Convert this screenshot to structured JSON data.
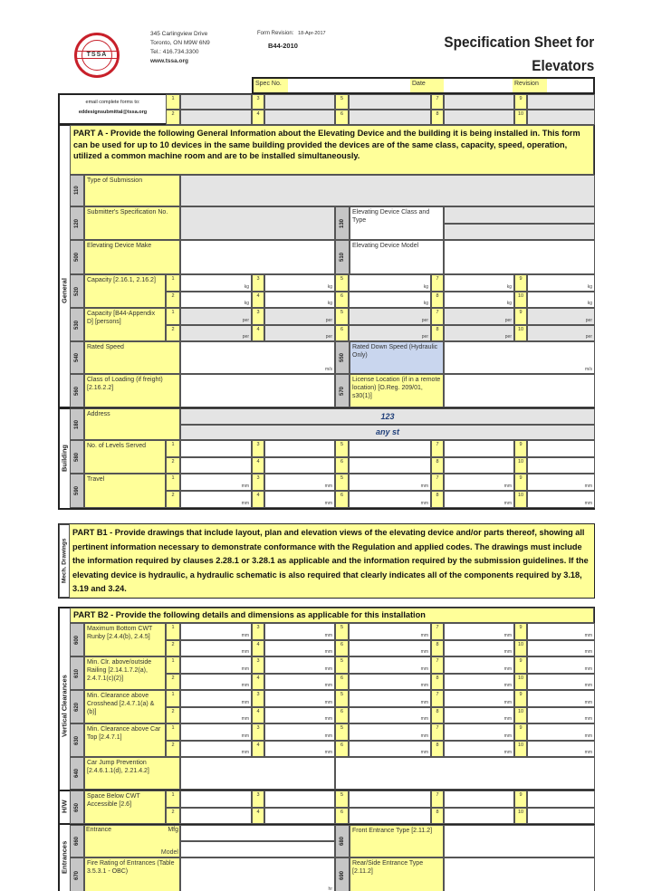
{
  "header": {
    "logo_text": "TSSA",
    "address_lines": [
      "345 Carlingview Drive",
      "Toronto, ON M9W 6N9",
      "Tel.: 416.734.3300"
    ],
    "website": "www.tssa.org",
    "form_revision_label": "Form Revision:",
    "form_revision_date": "18-Apr-2017",
    "form_code": "B44-2010",
    "title_line1": "Specification Sheet for",
    "title_line2": "Elevators"
  },
  "spec_bar": {
    "spec_no_label": "Spec No.",
    "date_label": "Date",
    "revision_label": "Revision"
  },
  "email": {
    "line1": "email complete forms to:",
    "line2": "eddesignsubmittal@tssa.org"
  },
  "device_numbers": [
    "1",
    "2",
    "3",
    "4",
    "5",
    "6",
    "7",
    "8",
    "9",
    "10"
  ],
  "colors": {
    "label_fill": "#ffff99",
    "input_fill": "#e4e4e4",
    "code_fill": "#c6c6c6",
    "highlight_fill": "#c9d6ee"
  },
  "part_a": {
    "text": "PART A - Provide the following General Information about the  Elevating Device and the building it is being installed in.  This form can be used for up to 10 devices in the same building provided the devices are of the same class, capacity, speed, operation, utilized a common machine room and are to be installed simultaneously."
  },
  "general": {
    "section": "General",
    "rows": [
      {
        "type": "full",
        "code": "110",
        "label": "Type of Submission"
      },
      {
        "type": "split",
        "code": "120",
        "label": "Submitter's Specification No.",
        "right_code": "130",
        "right_label": "Elevating Device Class and Type"
      },
      {
        "type": "split",
        "code": "500",
        "label": "Elevating Device Make",
        "right_code": "510",
        "right_label": "Elevating Device Model"
      },
      {
        "type": "grid",
        "code": "520",
        "label": "Capacity [2.16.1, 2.16.2]",
        "unit": "kg"
      },
      {
        "type": "grid",
        "code": "530",
        "label": "Capacity [B44-Appendix D] [persons]",
        "unit": "per"
      },
      {
        "type": "split",
        "code": "540",
        "label": "Rated Speed",
        "unit": "m/s",
        "right_code": "550",
        "right_label": "Rated Down Speed (Hydraulic Only)",
        "right_unit": "m/s"
      },
      {
        "type": "split",
        "code": "560",
        "label": "Class of Loading (if freight) [2.16.2.2]",
        "right_code": "570",
        "right_label": "License Location (if in a remote location) [O.Reg. 209/01, s30(1)]"
      }
    ]
  },
  "building": {
    "section": "Building",
    "rows": [
      {
        "type": "full",
        "code": "180",
        "label": "Address",
        "values": [
          "123",
          "any st"
        ]
      },
      {
        "type": "grid",
        "code": "580",
        "label": "No. of Levels Served",
        "unit": ""
      },
      {
        "type": "grid",
        "code": "590",
        "label": "Travel",
        "unit": "mm"
      }
    ]
  },
  "part_b1": {
    "section": "Mech. Drawings",
    "text": "PART B1 - Provide drawings that include layout, plan and elevation views of the elevating device and/or parts thereof, showing all pertinent information necessary to demonstrate conformance with the Regulation and applied codes.  The drawings must include the information required by clauses 2.28.1 or 3.28.1 as applicable and the information required by the submission guidelines.  If the elevating device is hydraulic, a hydraulic schematic is also required that clearly indicates all of the components required by 3.18, 3.19 and 3.24."
  },
  "part_b2": {
    "header": "PART B2 - Provide the following details and dimensions as applicable for this installation",
    "vertical": {
      "section": "Vertical Clearances",
      "rows": [
        {
          "type": "grid",
          "code": "600",
          "label": "Maximum Bottom CWT Runby [2.4.4(b), 2.4.5]",
          "unit": "mm"
        },
        {
          "type": "grid",
          "code": "610",
          "label": "Min. Clr. above/outside Railing [2.14.1.7.2(a), 2.4.7.1(c)(2)]",
          "unit": "mm"
        },
        {
          "type": "grid",
          "code": "620",
          "label": "Min. Clearance above Crosshead [2.4.7.1(a) & (b)]",
          "unit": "mm"
        },
        {
          "type": "grid",
          "code": "630",
          "label": "Min. Clearance above Car Top [2.4.7.1]",
          "unit": "mm"
        },
        {
          "type": "halves",
          "code": "640",
          "label": "Car Jump Prevention [2.4.6.1.1(d), 2.21.4.2]"
        }
      ]
    },
    "hw": {
      "section": "H/W",
      "rows": [
        {
          "type": "grid",
          "code": "650",
          "label": "Space Below CWT Accessible [2.6]",
          "unit": ""
        }
      ]
    },
    "entrances": {
      "section": "Entrances",
      "rows": [
        {
          "type": "split",
          "code": "660",
          "label": "Entrance",
          "sub_labels": [
            "Mfg",
            "Model"
          ],
          "right_code": "680",
          "right_label": "Front Entrance Type [2.11.2]"
        },
        {
          "type": "split",
          "code": "670",
          "label": "Fire Rating of Entrances (Table 3.5.3.1 - OBC)",
          "unit": "hr",
          "right_code": "690",
          "right_label": "Rear/Side Entrance Type [2.11.2]"
        }
      ]
    }
  }
}
